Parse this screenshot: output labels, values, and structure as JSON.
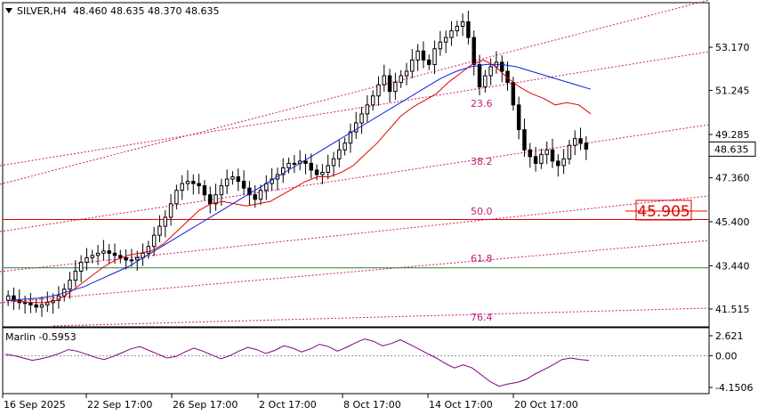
{
  "header": {
    "symbol": "SILVER,H4",
    "ohlc": "48.460 48.635 48.370 48.635"
  },
  "indicator": {
    "name": "Marlin -0.5953",
    "axis_labels": [
      "2.621",
      "0.00",
      "-4.1506"
    ],
    "levels": [
      2.621,
      0.0,
      -4.1506
    ]
  },
  "colors": {
    "bull_candle": "#000000",
    "bear_candle": "#000000",
    "fast_ma": "#e00000",
    "slow_ma": "#0a20d8",
    "channel": "#d0206a",
    "fib_text": "#c0207a",
    "level_red": "#e00000",
    "level_green": "#2e7d2e",
    "oscillator": "#800080",
    "price_box_bg": "#ffffff",
    "target_box": "#e00000"
  },
  "price_axis": {
    "labels": [
      "53.170",
      "51.245",
      "49.285",
      "47.360",
      "45.400",
      "43.440",
      "41.515"
    ],
    "current_price": "48.635"
  },
  "time_axis": {
    "labels": [
      "16 Sep 2025",
      "22 Sep 17:00",
      "26 Sep 17:00",
      "2 Oct 17:00",
      "8 Oct 17:00",
      "14 Oct 17:00",
      "20 Oct 17:00"
    ]
  },
  "fibonacci": {
    "labels": [
      "23.6",
      "38.2",
      "50.0",
      "61.8",
      "76.4"
    ]
  },
  "target_level": {
    "label": "45.905",
    "price": 45.905
  },
  "chart_data": {
    "type": "candlestick",
    "title": "SILVER,H4",
    "ylim": [
      40.9,
      55.5
    ],
    "x_range": [
      "2025-09-16",
      "2025-10-24"
    ],
    "close_series_approx": [
      42.1,
      41.9,
      41.8,
      41.8,
      41.7,
      41.6,
      41.7,
      41.8,
      41.9,
      42.1,
      42.4,
      42.8,
      43.2,
      43.6,
      43.8,
      43.9,
      44.0,
      44.1,
      44.0,
      43.9,
      43.8,
      43.7,
      43.7,
      43.8,
      44.0,
      44.3,
      44.8,
      45.2,
      45.6,
      46.2,
      46.8,
      47.1,
      47.2,
      47.1,
      47.0,
      46.6,
      46.2,
      46.6,
      47.0,
      47.3,
      47.4,
      47.2,
      46.9,
      46.6,
      46.4,
      46.8,
      47.1,
      47.3,
      47.5,
      47.8,
      48.0,
      48.0,
      48.1,
      48.0,
      47.7,
      47.5,
      47.6,
      47.9,
      48.2,
      48.6,
      48.9,
      49.4,
      49.8,
      50.2,
      50.6,
      51.0,
      51.5,
      51.9,
      51.2,
      51.6,
      51.9,
      52.1,
      52.6,
      53.0,
      52.6,
      52.4,
      53.1,
      53.4,
      53.6,
      53.9,
      54.1,
      54.3,
      53.6,
      52.4,
      51.4,
      51.9,
      52.3,
      52.5,
      52.1,
      51.6,
      50.6,
      49.5,
      48.6,
      48.3,
      48.0,
      48.4,
      48.6,
      48.1,
      47.9,
      48.2,
      48.8,
      49.1,
      48.9,
      48.635
    ],
    "fast_ma_approx": [
      41.9,
      41.85,
      41.8,
      41.8,
      41.9,
      42.2,
      42.6,
      43.0,
      43.4,
      43.7,
      43.9,
      44.0,
      44.1,
      44.4,
      44.9,
      45.4,
      45.9,
      46.2,
      46.3,
      46.2,
      46.1,
      46.2,
      46.3,
      46.6,
      46.9,
      47.2,
      47.4,
      47.4,
      47.6,
      47.9,
      48.4,
      48.9,
      49.5,
      50.1,
      50.5,
      50.8,
      51.1,
      51.6,
      52.0,
      52.4,
      52.6,
      52.3,
      51.8,
      51.4,
      51.1,
      50.9,
      50.6,
      50.7,
      50.6,
      50.2
    ],
    "slow_ma_approx": [
      41.9,
      41.95,
      42.0,
      42.1,
      42.3,
      42.5,
      42.8,
      43.1,
      43.4,
      43.8,
      44.2,
      44.6,
      45.0,
      45.4,
      45.8,
      46.2,
      46.6,
      47.0,
      47.4,
      47.8,
      48.2,
      48.6,
      49.0,
      49.4,
      49.8,
      50.2,
      50.6,
      51.0,
      51.4,
      51.8,
      52.1,
      52.3,
      52.4,
      52.4,
      52.3,
      52.1,
      51.9,
      51.7,
      51.5,
      51.3
    ],
    "horizontal_levels": [
      {
        "price": 45.5,
        "color": "red"
      },
      {
        "price": 43.35,
        "color": "green"
      }
    ],
    "oscillator": {
      "name": "Marlin",
      "value": -0.5953,
      "ylim": [
        -4.1506,
        2.621
      ],
      "values_approx": [
        0.2,
        0.0,
        -0.3,
        -0.6,
        -0.4,
        -0.1,
        0.3,
        0.8,
        0.6,
        0.2,
        -0.2,
        -0.5,
        -0.1,
        0.4,
        0.9,
        1.2,
        0.7,
        0.2,
        -0.3,
        -0.1,
        0.5,
        1.0,
        0.6,
        0.1,
        -0.4,
        0.0,
        0.6,
        1.1,
        0.8,
        0.3,
        0.7,
        1.3,
        1.0,
        0.5,
        0.9,
        1.5,
        1.2,
        0.6,
        1.1,
        1.7,
        2.2,
        1.9,
        1.3,
        1.6,
        2.1,
        1.5,
        0.9,
        0.3,
        -0.3,
        -1.0,
        -1.6,
        -1.2,
        -1.6,
        -2.5,
        -3.4,
        -4.0,
        -3.7,
        -3.5,
        -3.1,
        -2.4,
        -1.8,
        -1.2,
        -0.5,
        -0.3,
        -0.5,
        -0.6
      ]
    }
  }
}
